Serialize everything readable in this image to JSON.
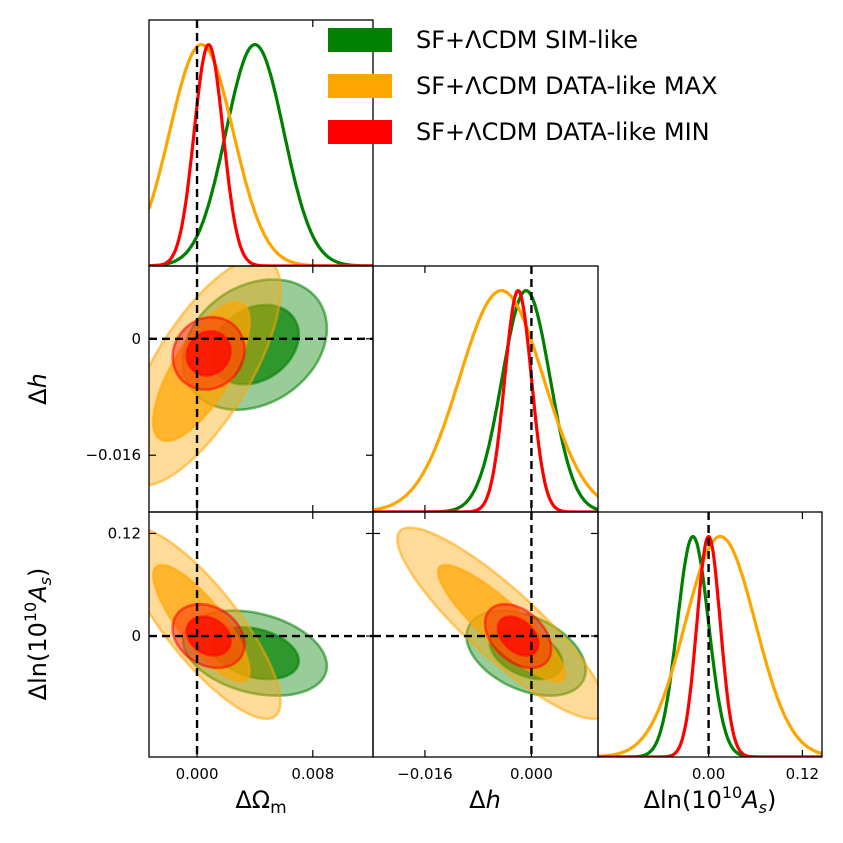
{
  "chart_data": {
    "type": "triangle-corner",
    "parameters": [
      {
        "id": "Om",
        "label": "ΔΩ",
        "label_sub": "m",
        "italic": false,
        "range": [
          -0.00332,
          0.01216
        ],
        "ticks": [
          0.0,
          0.008
        ],
        "tick_labels": [
          "0.000",
          "0.008"
        ]
      },
      {
        "id": "h",
        "label": "Δ",
        "label_var": "h",
        "italic": true,
        "range": [
          -0.0238,
          0.01
        ],
        "ticks": [
          0.0,
          -0.016
        ],
        "tick_labels": [
          "0",
          "−0.016"
        ],
        "ticks_x": [
          -0.016,
          0.0
        ],
        "tick_labels_x": [
          "−0.016",
          "0.000"
        ]
      },
      {
        "id": "As",
        "label": "Δln(10",
        "label_sup": "10",
        "label_var": "A",
        "label_var_sub": "s",
        "range": [
          -0.1415,
          0.1451
        ],
        "ticks": [
          0.12,
          0.0
        ],
        "tick_labels": [
          "0.12",
          "0"
        ],
        "ticks_x": [
          0.0,
          0.12
        ],
        "tick_labels_x": [
          "0.00",
          "0.12"
        ]
      }
    ],
    "reference_values": {
      "Om": 0.0,
      "h": 0.0,
      "As": 0.0
    },
    "series": [
      {
        "name": "SF+ΛCDM SIM-like",
        "color": "#008000",
        "mean": {
          "Om": 0.004,
          "h": -0.0008,
          "As": -0.02
        },
        "sigma": {
          "Om": 0.002,
          "h": 0.0036,
          "As": 0.02
        },
        "corr": {
          "Om_h": 0.25,
          "Om_As": -0.3,
          "h_As": -0.4
        }
      },
      {
        "name": "SF+ΛCDM DATA-like MAX",
        "color": "#FFA500",
        "mean": {
          "Om": 0.0003,
          "h": -0.0045,
          "As": 0.015
        },
        "sigma": {
          "Om": 0.0022,
          "h": 0.0063,
          "As": 0.045
        },
        "corr": {
          "Om_h": 0.72,
          "Om_As": -0.82,
          "h_As": -0.88
        }
      },
      {
        "name": "SF+ΛCDM DATA-like MIN",
        "color": "#FF0000",
        "mean": {
          "Om": 0.0008,
          "h": -0.002,
          "As": 0.0
        },
        "sigma": {
          "Om": 0.001,
          "h": 0.002,
          "As": 0.015
        },
        "corr": {
          "Om_h": 0.1,
          "Om_As": -0.25,
          "h_As": -0.4
        }
      }
    ],
    "contour_levels": [
      "68%",
      "95%"
    ],
    "legend_position": "top-right"
  }
}
